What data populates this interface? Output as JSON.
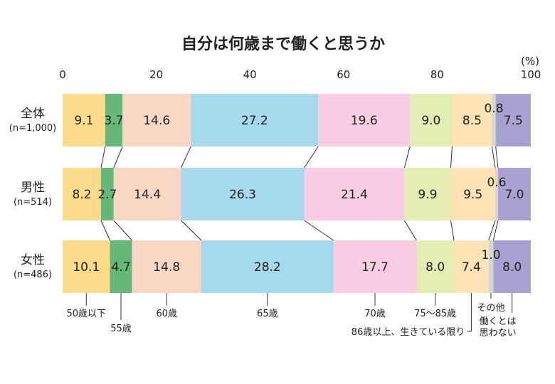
{
  "chart_data": {
    "type": "bar",
    "stacked": true,
    "orientation": "horizontal",
    "title": "自分は何歳まで働くと思うか",
    "unit": "(%)",
    "xlim": [
      0,
      100
    ],
    "xticks": [
      0,
      20,
      40,
      60,
      80,
      100
    ],
    "rows": [
      {
        "label": "全体",
        "sub": "(n=1,000)"
      },
      {
        "label": "男性",
        "sub": "(n=514)"
      },
      {
        "label": "女性",
        "sub": "(n=486)"
      }
    ],
    "series": [
      {
        "name": "50歳以下",
        "color": "#fbdc8a",
        "values": [
          9.1,
          8.2,
          10.1
        ],
        "labels": [
          "9.1",
          "8.2",
          "10.1"
        ]
      },
      {
        "name": "55歳",
        "color": "#67b878",
        "values": [
          3.7,
          2.7,
          4.7
        ],
        "labels": [
          "3.7",
          "2.7",
          "4.7"
        ]
      },
      {
        "name": "60歳",
        "color": "#fad6c4",
        "values": [
          14.6,
          14.4,
          14.8
        ],
        "labels": [
          "14.6",
          "14.4",
          "14.8"
        ]
      },
      {
        "name": "65歳",
        "color": "#a7d8ee",
        "values": [
          27.2,
          26.3,
          28.2
        ],
        "labels": [
          "27.2",
          "26.3",
          "28.2"
        ]
      },
      {
        "name": "70歳",
        "color": "#f8cde3",
        "values": [
          19.6,
          21.4,
          17.7
        ],
        "labels": [
          "19.6",
          "21.4",
          "17.7"
        ]
      },
      {
        "name": "75～85歳",
        "color": "#e3ecb4",
        "values": [
          9.0,
          9.9,
          8.0
        ],
        "labels": [
          "9.0",
          "9.9",
          "8.0"
        ]
      },
      {
        "name": "86歳以上、生きている限り",
        "color": "#fde2b6",
        "values": [
          8.5,
          9.5,
          7.4
        ],
        "labels": [
          "8.5",
          "9.5",
          "7.4"
        ]
      },
      {
        "name": "その他",
        "color": "#d6d6d6",
        "values": [
          0.8,
          0.6,
          1.0
        ],
        "labels": [
          "0.8",
          "0.6",
          "1.0"
        ]
      },
      {
        "name": "働くとは思わない",
        "color": "#a7a2d1",
        "values": [
          7.5,
          7.0,
          8.0
        ],
        "labels": [
          "7.5",
          "7.0",
          "8.0"
        ]
      }
    ]
  }
}
